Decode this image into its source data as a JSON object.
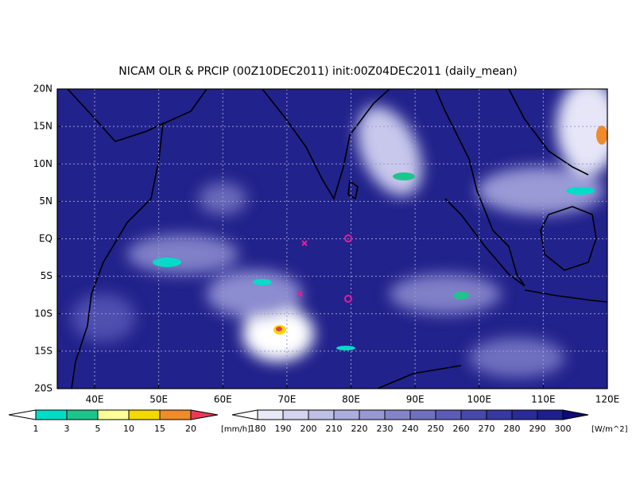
{
  "title": "NICAM OLR & PRCIP (00Z10DEC2011) init:00Z04DEC2011 (daily_mean)",
  "lat_labels": [
    "20N",
    "15N",
    "10N",
    "5N",
    "EQ",
    "5S",
    "10S",
    "15S",
    "20S"
  ],
  "lon_labels": [
    "40E",
    "50E",
    "60E",
    "70E",
    "80E",
    "90E",
    "100E",
    "110E",
    "120E"
  ],
  "precip_colorbar": {
    "labels": [
      "1",
      "3",
      "5",
      "10",
      "15",
      "20"
    ],
    "unit": "[mm/h]",
    "colors": [
      "#ffffff",
      "#00dcc8",
      "#1ec48c",
      "#ffff99",
      "#f5d800",
      "#f08a2a",
      "#e83a5a"
    ]
  },
  "olr_colorbar": {
    "labels": [
      "180",
      "190",
      "200",
      "210",
      "220",
      "230",
      "240",
      "250",
      "260",
      "270",
      "280",
      "290",
      "300"
    ],
    "unit": "[W/m^2]",
    "colors": [
      "#ffffff",
      "#e8e8f6",
      "#d4d4ee",
      "#c0c0e6",
      "#acacde",
      "#9898d4",
      "#8484ca",
      "#7070c0",
      "#5c5cb6",
      "#4848ac",
      "#3838a2",
      "#2a2a98",
      "#1e1e8e",
      "#141484",
      "#0c0c78"
    ]
  }
}
